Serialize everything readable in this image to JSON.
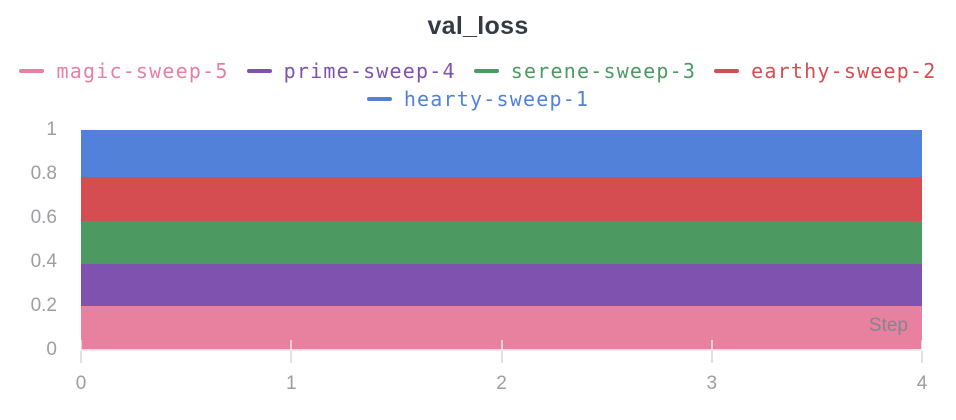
{
  "chart": {
    "title": "val_loss",
    "xlabel": "Step"
  },
  "chart_data": {
    "type": "area",
    "title": "val_loss",
    "xlabel": "Step",
    "ylabel": "",
    "xlim": [
      0,
      4
    ],
    "ylim": [
      0,
      1
    ],
    "grid": false,
    "legend_position": "top",
    "x_ticks": [
      {
        "label": "0",
        "value": 0
      },
      {
        "label": "1",
        "value": 1
      },
      {
        "label": "2",
        "value": 2
      },
      {
        "label": "3",
        "value": 3
      },
      {
        "label": "4",
        "value": 4
      }
    ],
    "y_ticks": [
      {
        "label": "0",
        "value": 0
      },
      {
        "label": "0.2",
        "value": 0.2
      },
      {
        "label": "0.4",
        "value": 0.4
      },
      {
        "label": "0.6",
        "value": 0.6
      },
      {
        "label": "0.8",
        "value": 0.8
      },
      {
        "label": "1",
        "value": 1
      }
    ],
    "series": [
      {
        "name": "magic-sweep-5",
        "color": "#E880A0",
        "band": [
          0.0,
          0.2
        ],
        "x_range": [
          0,
          4
        ]
      },
      {
        "name": "prime-sweep-4",
        "color": "#7E52AE",
        "band": [
          0.2,
          0.39
        ],
        "x_range": [
          0,
          4
        ]
      },
      {
        "name": "serene-sweep-3",
        "color": "#4C9A62",
        "band": [
          0.39,
          0.585
        ],
        "x_range": [
          0,
          4
        ]
      },
      {
        "name": "earthy-sweep-2",
        "color": "#D54D50",
        "band": [
          0.585,
          0.785
        ],
        "x_range": [
          0,
          4
        ]
      },
      {
        "name": "hearty-sweep-1",
        "color": "#5181D8",
        "band": [
          0.785,
          1.0
        ],
        "x_range": [
          0,
          4
        ]
      }
    ]
  }
}
